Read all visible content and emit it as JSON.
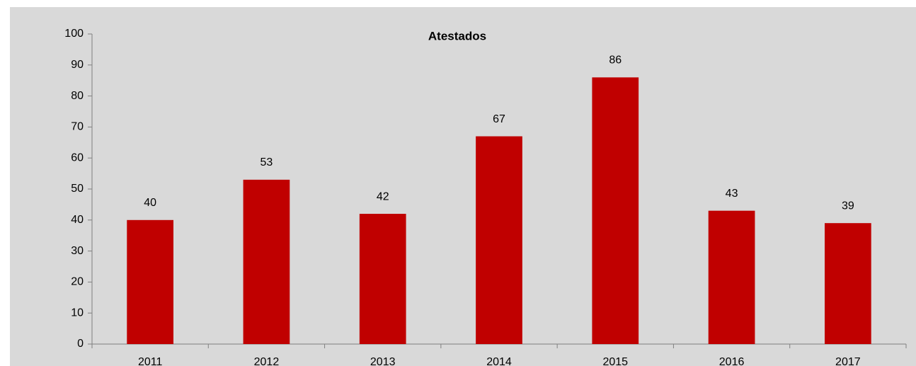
{
  "chart_data": {
    "type": "bar",
    "title": "Atestados",
    "categories": [
      "2011",
      "2012",
      "2013",
      "2014",
      "2015",
      "2016",
      "2017"
    ],
    "values": [
      40,
      53,
      42,
      67,
      86,
      43,
      39
    ],
    "color": "#c00000",
    "ylim": [
      0,
      100
    ],
    "yticks": [
      0,
      10,
      20,
      30,
      40,
      50,
      60,
      70,
      80,
      90,
      100
    ],
    "grid": false
  }
}
